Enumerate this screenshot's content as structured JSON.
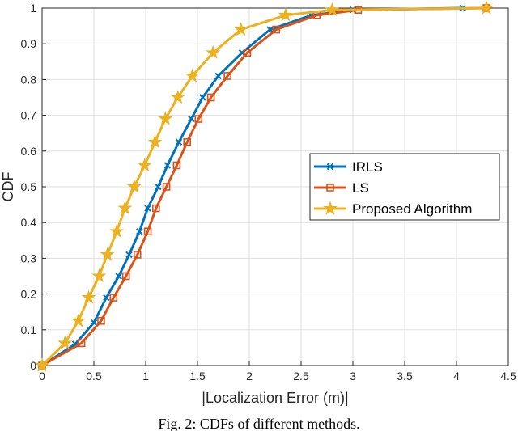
{
  "chart_data": {
    "type": "line",
    "caption": "Fig. 2: CDFs of different methods.",
    "xlabel": "|Localization Error (m)|",
    "ylabel": "CDF",
    "xlim": [
      0,
      4.5
    ],
    "ylim": [
      0,
      1
    ],
    "xticks": [
      0,
      0.5,
      1,
      1.5,
      2,
      2.5,
      3,
      3.5,
      4,
      4.5
    ],
    "yticks": [
      0,
      0.1,
      0.2,
      0.3,
      0.4,
      0.5,
      0.6,
      0.7,
      0.8,
      0.9,
      1
    ],
    "grid": true,
    "legend": "right",
    "series": [
      {
        "name": "IRLS",
        "color": "#0072bd",
        "marker": "x",
        "x": [
          0,
          0.32,
          0.5,
          0.62,
          0.74,
          0.84,
          0.94,
          1.02,
          1.12,
          1.21,
          1.32,
          1.44,
          1.55,
          1.7,
          1.93,
          2.2,
          2.6,
          3.0,
          4.06
        ],
        "values": [
          0,
          0.06,
          0.12,
          0.19,
          0.25,
          0.31,
          0.375,
          0.44,
          0.5,
          0.56,
          0.625,
          0.69,
          0.75,
          0.81,
          0.875,
          0.94,
          0.98,
          0.995,
          1
        ]
      },
      {
        "name": "LS",
        "color": "#d95319",
        "marker": "square",
        "x": [
          0,
          0.38,
          0.57,
          0.69,
          0.81,
          0.92,
          1.02,
          1.1,
          1.2,
          1.3,
          1.4,
          1.51,
          1.63,
          1.79,
          1.98,
          2.26,
          2.65,
          3.05,
          4.29
        ],
        "values": [
          0,
          0.0625,
          0.125,
          0.19,
          0.25,
          0.31,
          0.375,
          0.44,
          0.5,
          0.56,
          0.625,
          0.69,
          0.75,
          0.81,
          0.875,
          0.94,
          0.98,
          0.995,
          1
        ]
      },
      {
        "name": "Proposed Algorithm",
        "color": "#edb120",
        "marker": "star",
        "x": [
          0,
          0.22,
          0.35,
          0.45,
          0.55,
          0.63,
          0.72,
          0.8,
          0.89,
          0.99,
          1.09,
          1.19,
          1.31,
          1.45,
          1.65,
          1.92,
          2.35,
          2.8,
          4.29
        ],
        "values": [
          0,
          0.0625,
          0.125,
          0.19,
          0.25,
          0.31,
          0.375,
          0.44,
          0.5,
          0.56,
          0.625,
          0.69,
          0.75,
          0.81,
          0.875,
          0.94,
          0.98,
          0.995,
          1
        ]
      }
    ]
  }
}
